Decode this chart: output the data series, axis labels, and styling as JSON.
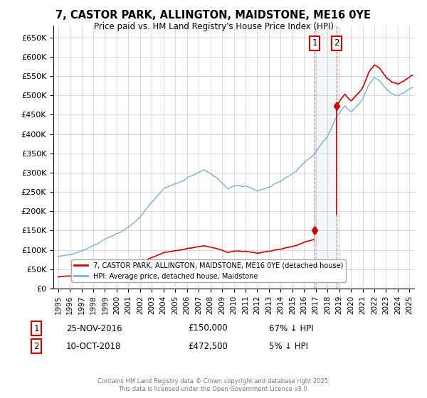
{
  "title_line1": "7, CASTOR PARK, ALLINGTON, MAIDSTONE, ME16 0YE",
  "title_line2": "Price paid vs. HM Land Registry's House Price Index (HPI)",
  "ylim": [
    0,
    680000
  ],
  "sale1_date": "25-NOV-2016",
  "sale1_price": 150000,
  "sale1_label": "67% ↓ HPI",
  "sale1_x": 2016.9,
  "sale2_date": "10-OCT-2018",
  "sale2_price": 472500,
  "sale2_label": "5% ↓ HPI",
  "sale2_x": 2018.78,
  "property_color": "#cc0000",
  "hpi_color": "#7ab0d4",
  "background_color": "#ffffff",
  "grid_color": "#cccccc",
  "legend_label_property": "7, CASTOR PARK, ALLINGTON, MAIDSTONE, ME16 0YE (detached house)",
  "legend_label_hpi": "HPI: Average price, detached house, Maidstone",
  "footer_line1": "Contains HM Land Registry data © Crown copyright and database right 2025.",
  "footer_line2": "This data is licensed under the Open Government Licence v3.0."
}
